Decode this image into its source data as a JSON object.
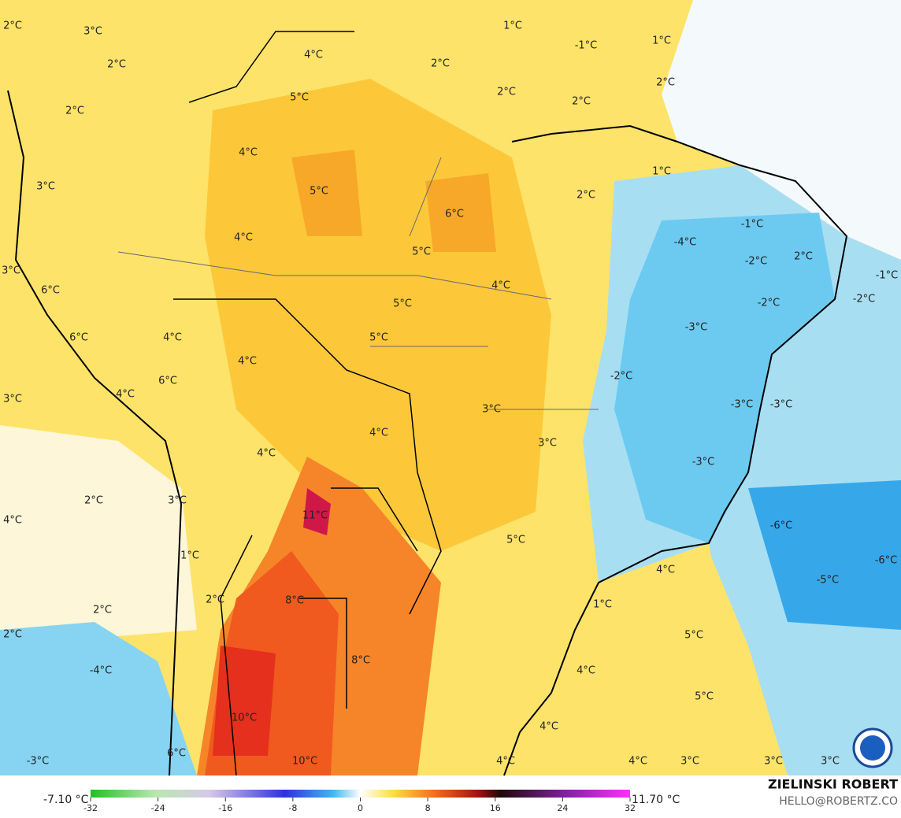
{
  "map": {
    "labels": [
      "2°C",
      "3°C",
      "4°C",
      "2°C",
      "1°C",
      "-1°C",
      "1°C",
      "2°C",
      "2°C",
      "2°C",
      "2°C",
      "5°C",
      "2°C",
      "4°C",
      "1°C",
      "3°C",
      "5°C",
      "2°C",
      "6°C",
      "4°C",
      "-1°C",
      "-4°C",
      "5°C",
      "2°C",
      "-2°C",
      "3°C",
      "-1°C",
      "4°C",
      "6°C",
      "-2°C",
      "-2°C",
      "5°C",
      "-3°C",
      "6°C",
      "4°C",
      "5°C",
      "4°C",
      "-2°C",
      "6°C",
      "4°C",
      "3°C",
      "-3°C",
      "-3°C",
      "3°C",
      "4°C",
      "3°C",
      "4°C",
      "-3°C",
      "2°C",
      "3°C",
      "11°C",
      "4°C",
      "-6°C",
      "5°C",
      "1°C",
      "-6°C",
      "4°C",
      "-5°C",
      "8°C",
      "2°C",
      "1°C",
      "2°C",
      "2°C",
      "5°C",
      "8°C",
      "-4°C",
      "4°C",
      "5°C",
      "10°C",
      "4°C",
      "6°C",
      "-3°C",
      "10°C",
      "4°C",
      "4°C",
      "3°C",
      "3°C",
      "3°C"
    ]
  },
  "colorbar": {
    "min_label": "-7.10 °C",
    "max_label": "11.70 °C",
    "ticks": [
      -32,
      -24,
      -16,
      -8,
      0,
      8,
      16,
      24,
      32
    ],
    "range": [
      -32,
      32
    ]
  },
  "credit": {
    "name": "ZIELINSKI ROBERT",
    "contact": "HELLO@ROBERTZ.CO"
  }
}
